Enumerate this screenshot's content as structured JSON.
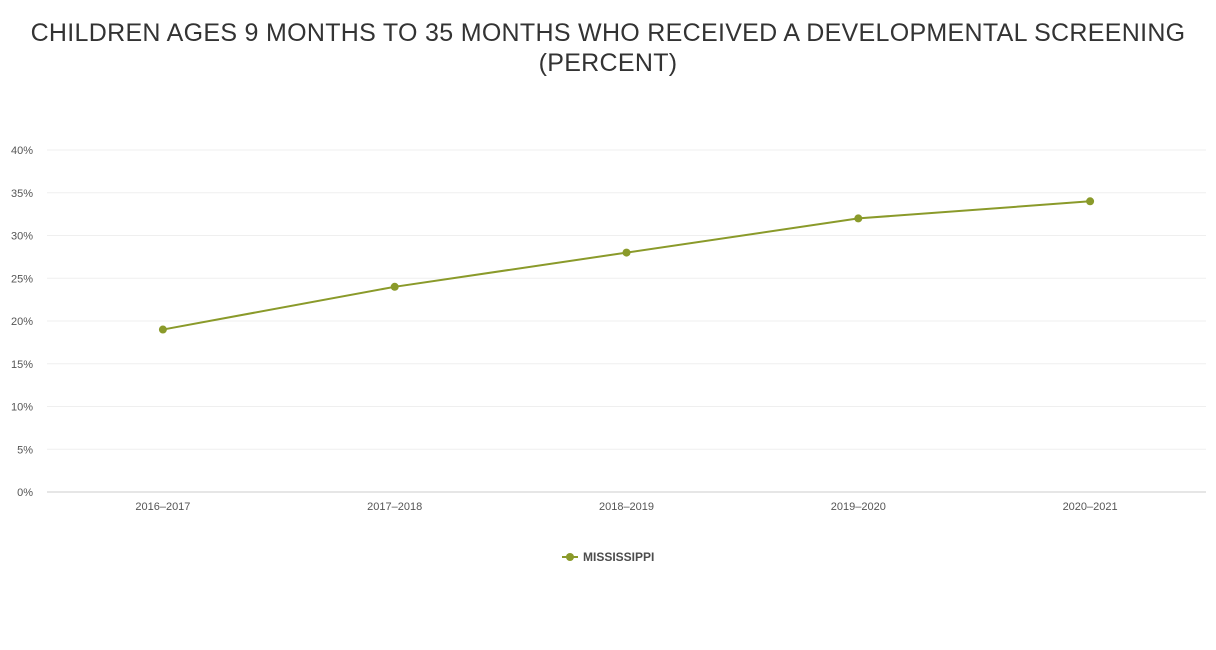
{
  "chart_data": {
    "type": "line",
    "title": "CHILDREN AGES 9 MONTHS TO 35 MONTHS WHO RECEIVED A DEVELOPMENTAL SCREENING (PERCENT)",
    "categories": [
      "2016–2017",
      "2017–2018",
      "2018–2019",
      "2019–2020",
      "2020–2021"
    ],
    "series": [
      {
        "name": "MISSISSIPPI",
        "values": [
          19,
          24,
          28,
          32,
          34
        ],
        "color": "#8a9a2a"
      }
    ],
    "ylim": [
      0,
      40
    ],
    "yticks": [
      0,
      5,
      10,
      15,
      20,
      25,
      30,
      35,
      40
    ],
    "ytick_suffix": "%",
    "grid": true,
    "legend": "bottom-center"
  }
}
